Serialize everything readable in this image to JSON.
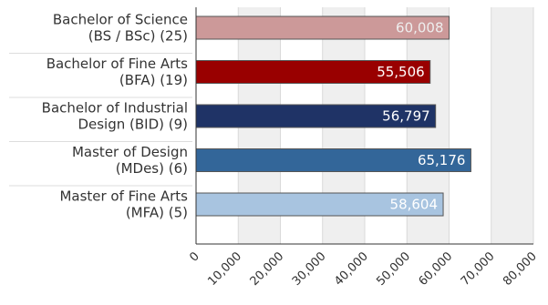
{
  "chart_data": {
    "type": "bar",
    "orientation": "horizontal",
    "title": "",
    "xlabel": "",
    "ylabel": "",
    "categories": [
      "Bachelor of Science (BS / BSc) (25)",
      "Bachelor of Fine Arts (BFA) (19)",
      "Bachelor of Industrial Design (BID) (9)",
      "Master of Design (MDes) (6)",
      "Master of Fine Arts (MFA) (5)"
    ],
    "category_label_lines": [
      [
        "Bachelor of Science",
        "(BS / BSc) (25)"
      ],
      [
        "Bachelor of Fine Arts",
        "(BFA) (19)"
      ],
      [
        "Bachelor of Industrial",
        "Design (BID) (9)"
      ],
      [
        "Master of Design",
        "(MDes) (6)"
      ],
      [
        "Master of Fine Arts",
        "(MFA) (5)"
      ]
    ],
    "values": [
      60008,
      55506,
      56797,
      65176,
      58604
    ],
    "value_labels": [
      "60,008",
      "55,506",
      "56,797",
      "65,176",
      "58,604"
    ],
    "bar_colors": [
      "#cc9999",
      "#990000",
      "#1f3366",
      "#336699",
      "#a8c4e0"
    ],
    "value_label_colors": [
      "#eeeeee",
      "#ffffff",
      "#ffffff",
      "#ffffff",
      "#ffffff"
    ],
    "xlim": [
      0,
      80000
    ],
    "xticks": [
      0,
      10000,
      20000,
      30000,
      40000,
      50000,
      60000,
      70000,
      80000
    ],
    "xtick_labels": [
      "0",
      "10,000",
      "20,000",
      "30,000",
      "40,000",
      "50,000",
      "60,000",
      "70,000",
      "80,000"
    ],
    "grid": true,
    "legend": false
  }
}
